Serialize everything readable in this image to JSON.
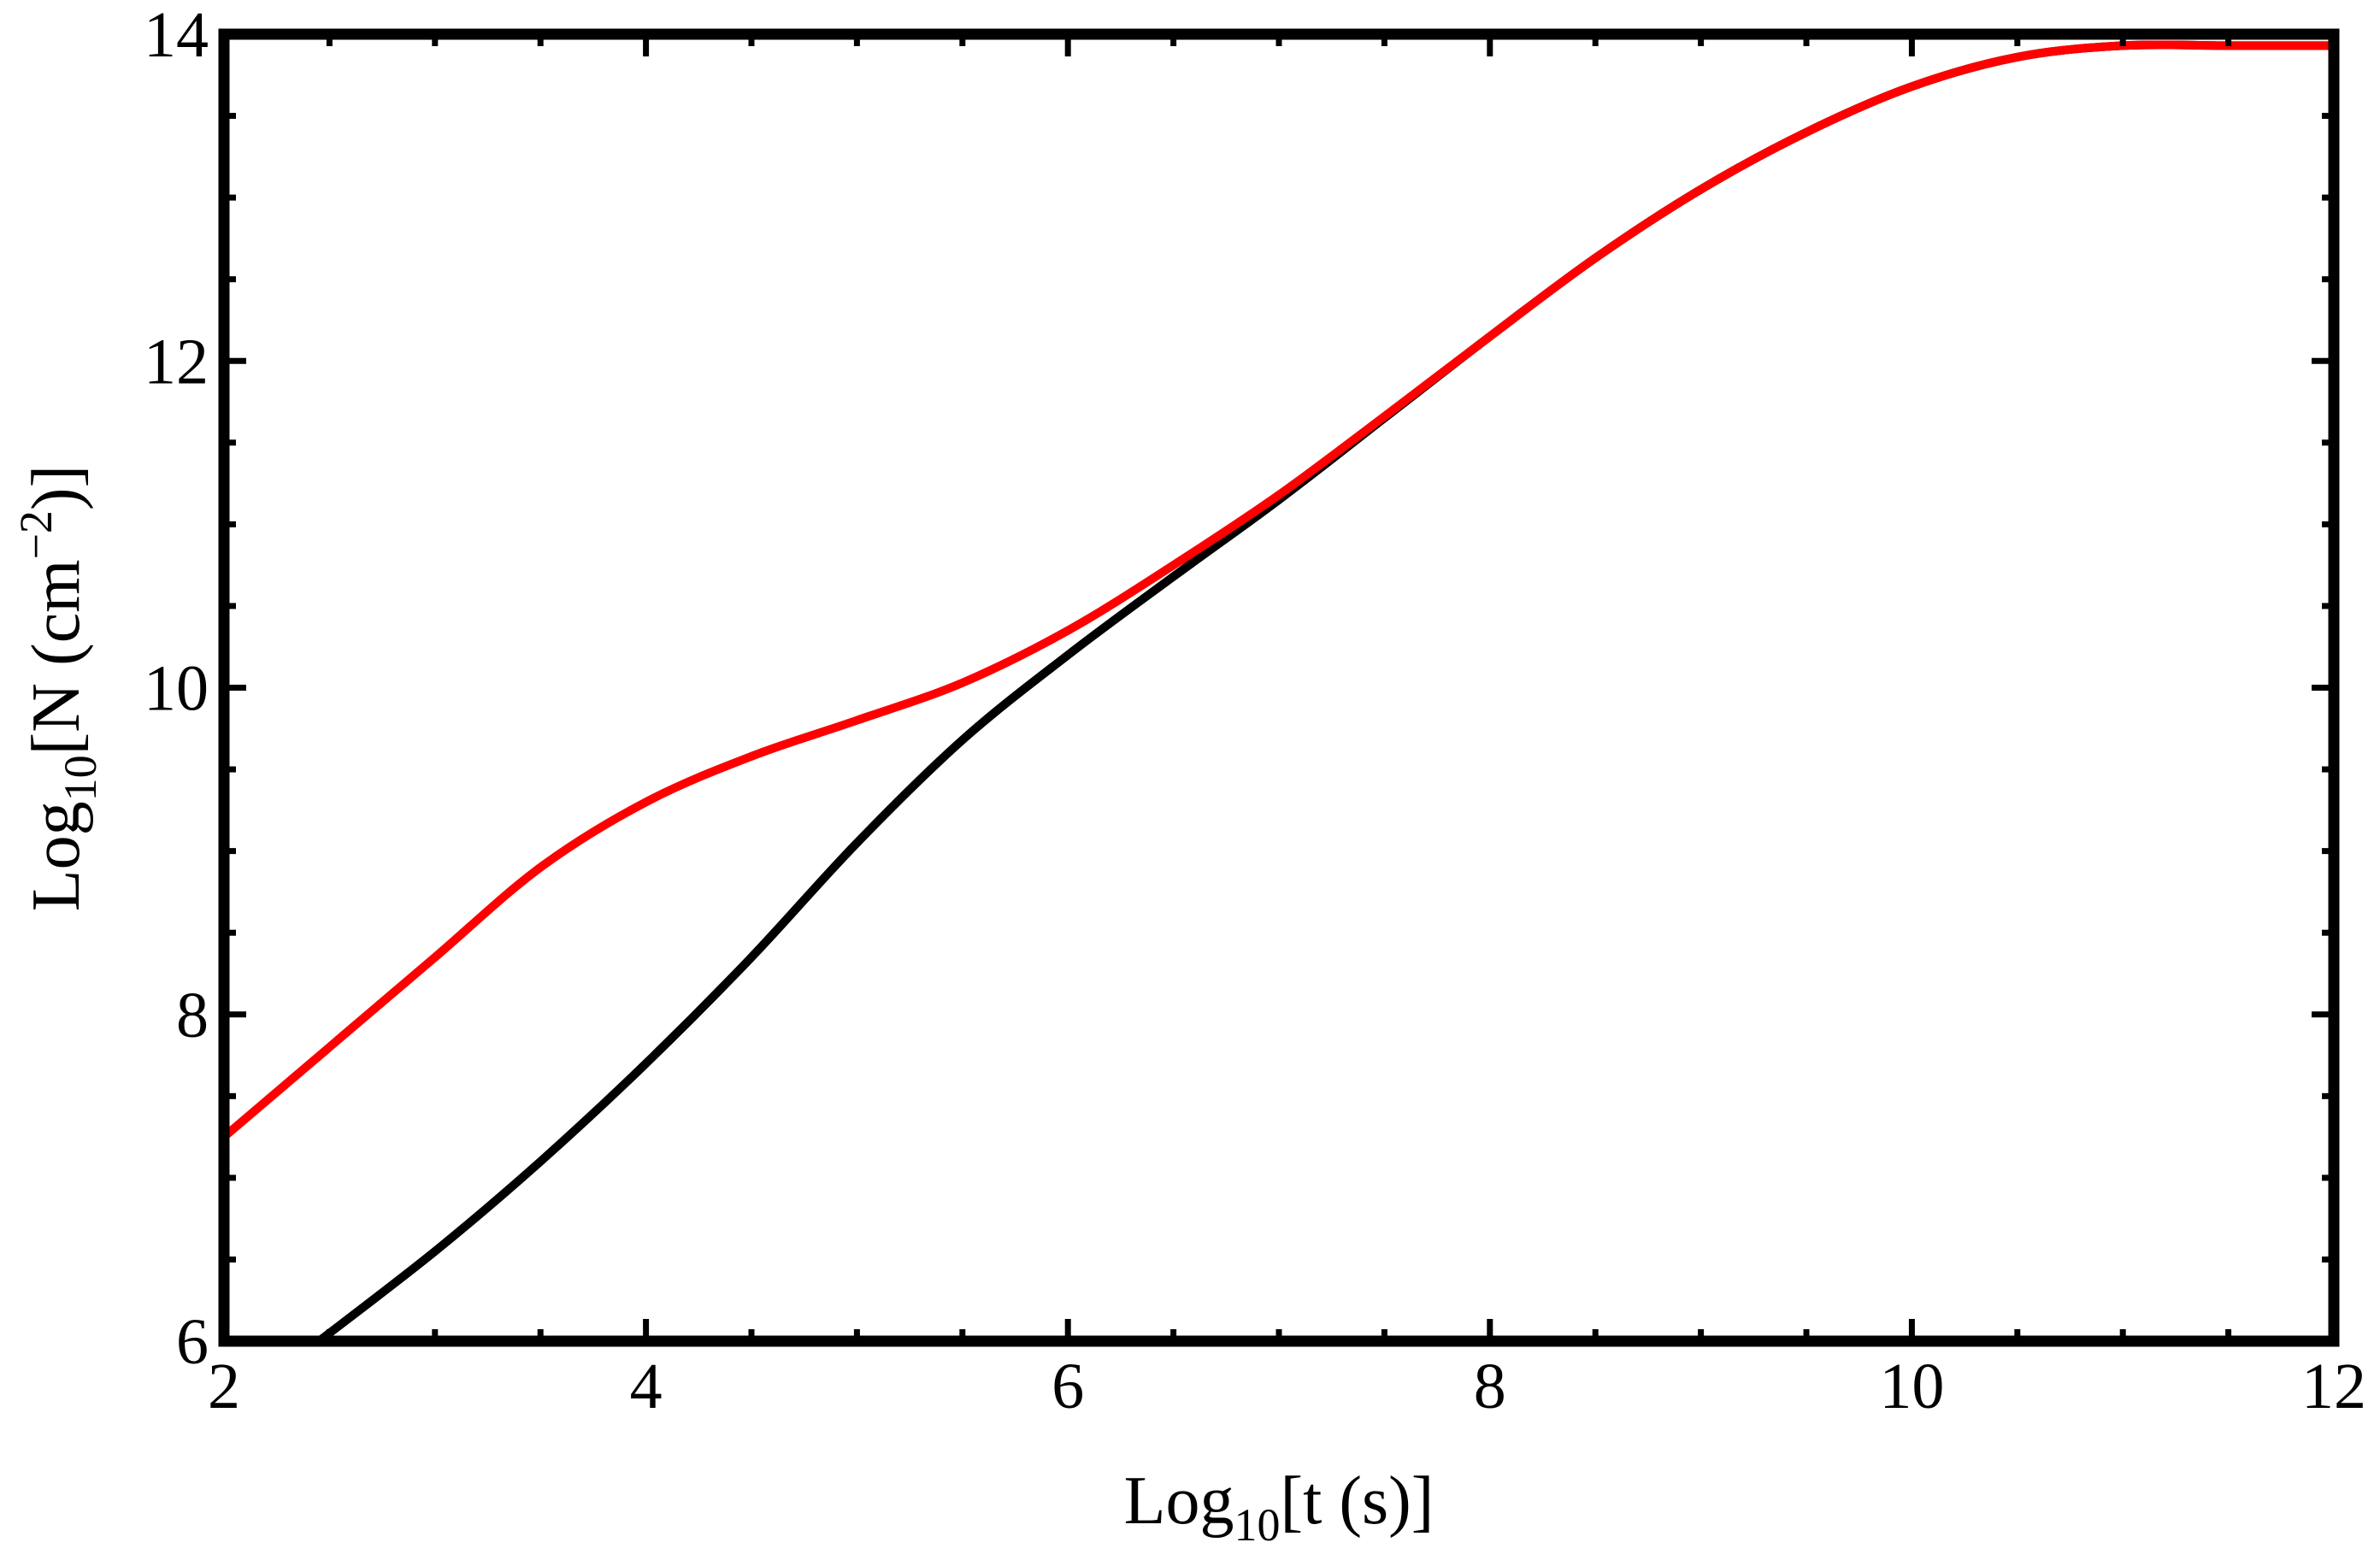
{
  "chart_data": {
    "type": "line",
    "xlabel": {
      "base": "Log",
      "sub": "10",
      "rest": "[t (s)]"
    },
    "ylabel": {
      "base": "Log",
      "sub": "10",
      "rest1": "[N (cm",
      "sup": "−2",
      "rest2": ")]"
    },
    "xlim": [
      2,
      12
    ],
    "ylim": [
      6,
      14
    ],
    "xticks": [
      2,
      4,
      6,
      8,
      10,
      12
    ],
    "yticks": [
      6,
      8,
      10,
      12,
      14
    ],
    "grid": false,
    "legend": "none",
    "series": [
      {
        "color": "#000000",
        "x": [
          2.45,
          3.0,
          3.5,
          4.0,
          4.5,
          5.0,
          5.5,
          6.0,
          6.5,
          7.0,
          7.5,
          8.0,
          8.5,
          9.0,
          9.5,
          10.0,
          10.5,
          11.0,
          11.5,
          12.0
        ],
        "y": [
          6.0,
          6.55,
          7.1,
          7.7,
          8.35,
          9.05,
          9.68,
          10.2,
          10.68,
          11.15,
          11.65,
          12.15,
          12.63,
          13.05,
          13.4,
          13.68,
          13.86,
          13.93,
          13.93,
          13.93
        ]
      },
      {
        "color": "#ff0000",
        "x": [
          2.0,
          2.5,
          3.0,
          3.5,
          4.0,
          4.5,
          5.0,
          5.5,
          6.0,
          6.5,
          7.0,
          7.5,
          8.0,
          8.5,
          9.0,
          9.5,
          10.0,
          10.5,
          11.0,
          11.5,
          12.0
        ],
        "y": [
          7.25,
          7.8,
          8.35,
          8.9,
          9.3,
          9.58,
          9.8,
          10.03,
          10.35,
          10.75,
          11.18,
          11.66,
          12.15,
          12.63,
          13.05,
          13.4,
          13.68,
          13.86,
          13.93,
          13.93,
          13.93
        ]
      }
    ]
  }
}
